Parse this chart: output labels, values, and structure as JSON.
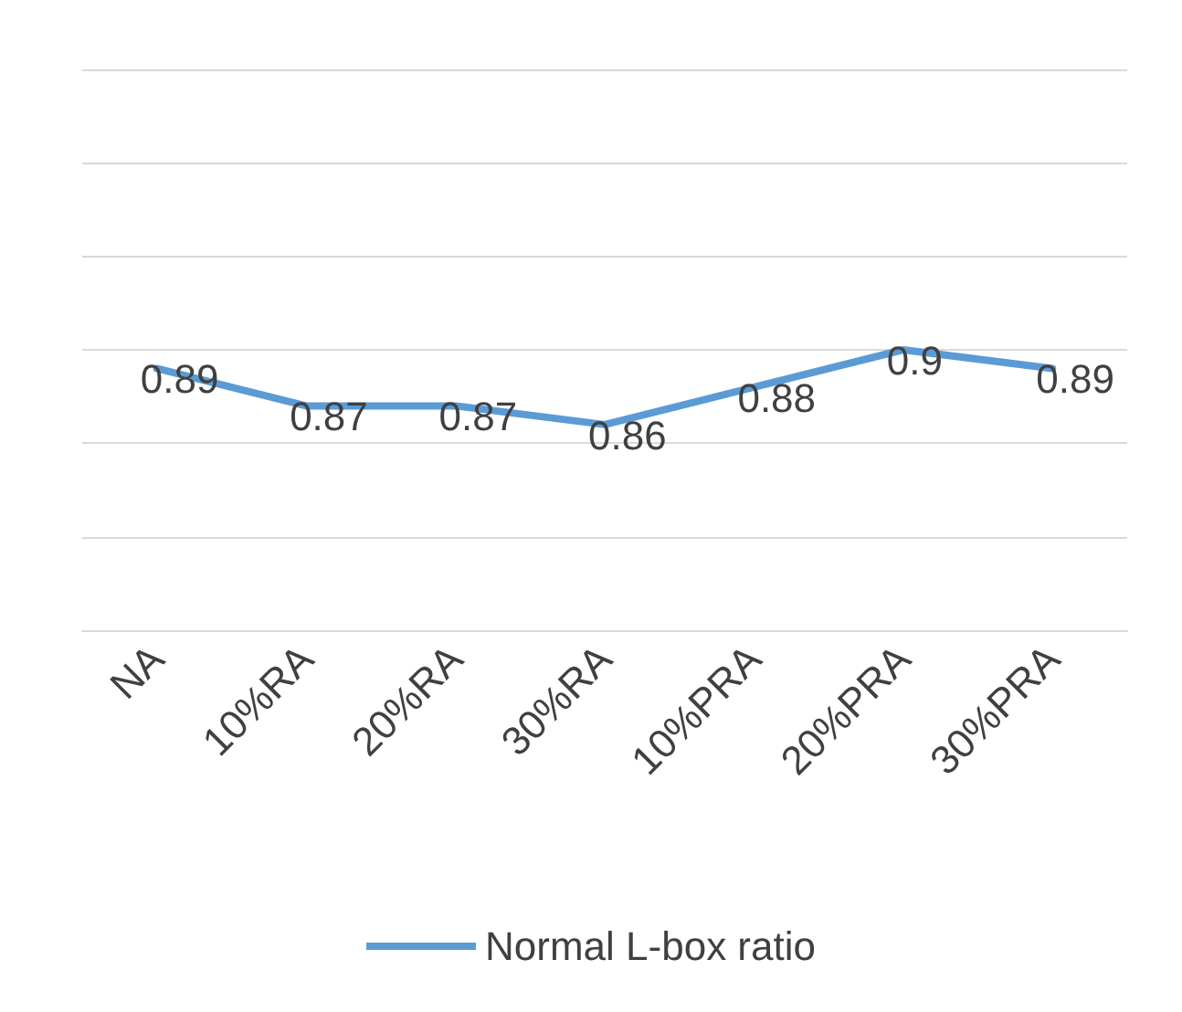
{
  "chart_data": {
    "type": "line",
    "categories": [
      "NA",
      "10%RA",
      "20%RA",
      "30%RA",
      "10%PRA",
      "20%PRA",
      "30%PRA"
    ],
    "series": [
      {
        "name": "Normal L-box ratio",
        "color": "#5b9bd5",
        "values": [
          0.89,
          0.87,
          0.87,
          0.86,
          0.88,
          0.9,
          0.89
        ]
      }
    ],
    "ylim": [
      0.75,
      1.05
    ],
    "yticks": [
      {
        "value": 0.75,
        "label": null
      },
      {
        "value": 0.8,
        "label": null
      },
      {
        "value": 0.85,
        "label": null
      },
      {
        "value": 0.9,
        "label": null
      },
      {
        "value": 0.95,
        "label": null
      },
      {
        "value": 1.0,
        "label": null
      },
      {
        "value": 1.05,
        "label": null
      }
    ],
    "tick_labels": "x",
    "grid": "y",
    "legend": "bottom",
    "marker": "none",
    "line_style": "solid",
    "data_labels": true
  }
}
